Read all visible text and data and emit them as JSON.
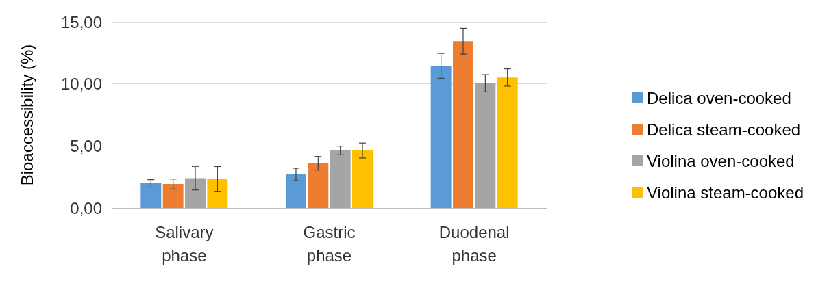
{
  "chart_data": {
    "type": "bar",
    "ylabel": "Bioaccessibility (%)",
    "categories": [
      "Salivary phase",
      "Gastric phase",
      "Duodenal phase"
    ],
    "series": [
      {
        "name": "Delica oven-cooked",
        "color": "#5b9bd5",
        "values": [
          1.98,
          2.7,
          11.46
        ],
        "errors": [
          0.3,
          0.5,
          1.0
        ]
      },
      {
        "name": "Delica steam-cooked",
        "color": "#ed7d31",
        "values": [
          1.93,
          3.6,
          13.44
        ],
        "errors": [
          0.4,
          0.55,
          1.04
        ]
      },
      {
        "name": "Violina oven-cooked",
        "color": "#a5a5a5",
        "values": [
          2.4,
          4.63,
          10.05
        ],
        "errors": [
          0.95,
          0.35,
          0.7
        ]
      },
      {
        "name": "Violina steam-cooked",
        "color": "#ffc000",
        "values": [
          2.34,
          4.63,
          10.52
        ],
        "errors": [
          1.0,
          0.6,
          0.7
        ]
      }
    ],
    "ylim": [
      0,
      15
    ],
    "yticks": [
      {
        "value": 0,
        "label": "0,00"
      },
      {
        "value": 5,
        "label": "5,00"
      },
      {
        "value": 10,
        "label": "10,00"
      },
      {
        "value": 15,
        "label": "15,00"
      }
    ],
    "grid": "y",
    "legend": "right"
  }
}
